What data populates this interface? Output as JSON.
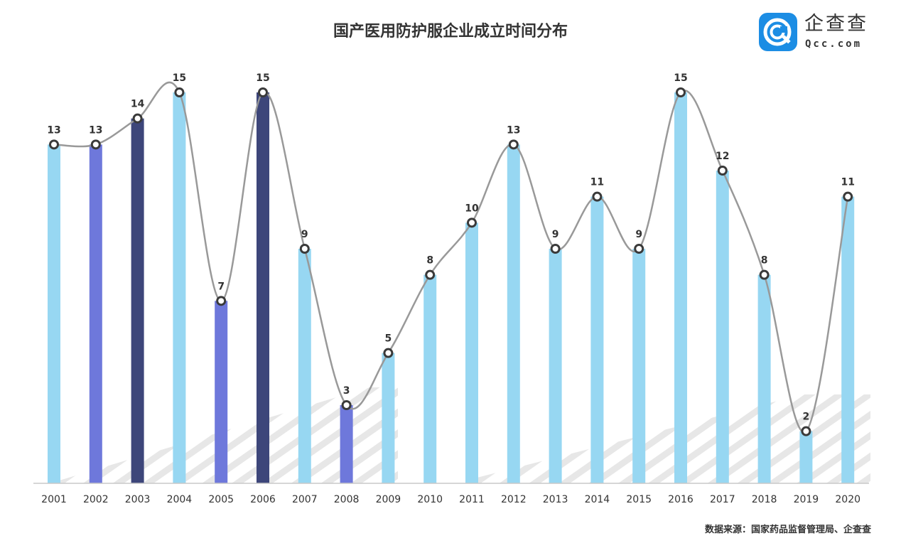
{
  "title": "国产医用防护服企业成立时间分布",
  "logo": {
    "cn": "企查查",
    "en": "Qcc.com",
    "icon": "qcc-logo-icon",
    "color": "#1c8de4"
  },
  "source": "数据来源：国家药品监督管理局、企查查",
  "chart_data": {
    "type": "bar",
    "title": "国产医用防护服企业成立时间分布",
    "xlabel": "",
    "ylabel": "",
    "ylim": [
      0,
      15
    ],
    "grid": false,
    "legend": "none",
    "categories": [
      "2001",
      "2002",
      "2003",
      "2004",
      "2005",
      "2006",
      "2007",
      "2008",
      "2009",
      "2010",
      "2011",
      "2012",
      "2013",
      "2014",
      "2015",
      "2016",
      "2017",
      "2018",
      "2019",
      "2020"
    ],
    "values": [
      13,
      13,
      14,
      15,
      7,
      15,
      9,
      3,
      5,
      8,
      10,
      13,
      9,
      11,
      9,
      15,
      12,
      8,
      2,
      11
    ],
    "bar_colors": [
      "#97d7f2",
      "#6e78db",
      "#3d467a",
      "#97d7f2",
      "#6e78db",
      "#3d467a",
      "#97d7f2",
      "#6e78db",
      "#97d7f2",
      "#97d7f2",
      "#97d7f2",
      "#97d7f2",
      "#97d7f2",
      "#97d7f2",
      "#97d7f2",
      "#97d7f2",
      "#97d7f2",
      "#97d7f2",
      "#97d7f2",
      "#97d7f2"
    ],
    "line_color": "#999999",
    "overlay": "smooth line with circular markers at each bar value"
  }
}
